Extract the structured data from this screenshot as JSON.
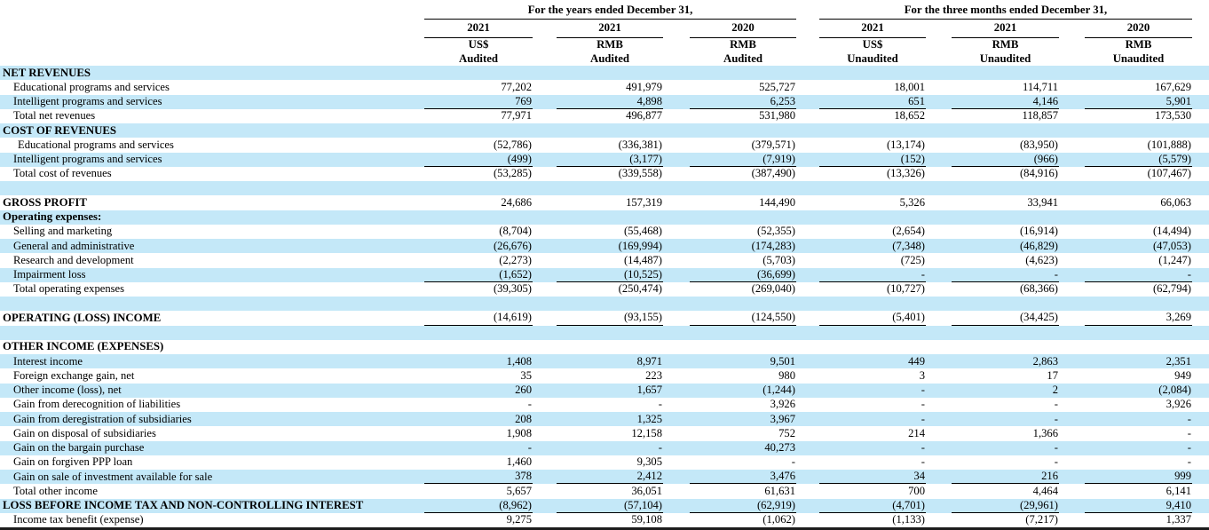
{
  "colors": {
    "row_highlight": "#c4e8f8",
    "text": "#000000",
    "rule": "#000000"
  },
  "header": {
    "groups": [
      {
        "title": "For the years ended December 31,",
        "columns": [
          {
            "year": "2021",
            "currency": "US$",
            "audit": "Audited"
          },
          {
            "year": "2021",
            "currency": "RMB",
            "audit": "Audited"
          },
          {
            "year": "2020",
            "currency": "RMB",
            "audit": "Audited"
          }
        ]
      },
      {
        "title": "For the three months ended December 31,",
        "columns": [
          {
            "year": "2021",
            "currency": "US$",
            "audit": "Unaudited"
          },
          {
            "year": "2021",
            "currency": "RMB",
            "audit": "Unaudited"
          },
          {
            "year": "2020",
            "currency": "RMB",
            "audit": "Unaudited"
          }
        ]
      }
    ]
  },
  "rows": [
    {
      "label": "NET REVENUES",
      "bold": true,
      "shade": true,
      "indent": 0,
      "underline": false,
      "spacer": false,
      "values": null
    },
    {
      "label": "Educational programs and services",
      "bold": false,
      "shade": false,
      "indent": 1,
      "underline": false,
      "spacer": false,
      "values": [
        "77,202",
        "491,979",
        "525,727",
        "18,001",
        "114,711",
        "167,629"
      ]
    },
    {
      "label": "Intelligent programs and services",
      "bold": false,
      "shade": true,
      "indent": 1,
      "underline": true,
      "spacer": false,
      "values": [
        "769",
        "4,898",
        "6,253",
        "651",
        "4,146",
        "5,901"
      ]
    },
    {
      "label": "Total net revenues",
      "bold": false,
      "shade": false,
      "indent": 1,
      "underline": false,
      "spacer": false,
      "values": [
        "77,971",
        "496,877",
        "531,980",
        "18,652",
        "118,857",
        "173,530"
      ]
    },
    {
      "label": "COST OF REVENUES",
      "bold": true,
      "shade": true,
      "indent": 0,
      "underline": false,
      "spacer": false,
      "values": null
    },
    {
      "label": "Educational programs and services",
      "bold": false,
      "shade": false,
      "indent": 2,
      "underline": false,
      "spacer": false,
      "values": [
        "(52,786)",
        "(336,381)",
        "(379,571)",
        "(13,174)",
        "(83,950)",
        "(101,888)"
      ]
    },
    {
      "label": "Intelligent programs and services",
      "bold": false,
      "shade": true,
      "indent": 1,
      "underline": true,
      "spacer": false,
      "values": [
        "(499)",
        "(3,177)",
        "(7,919)",
        "(152)",
        "(966)",
        "(5,579)"
      ]
    },
    {
      "label": "Total cost of revenues",
      "bold": false,
      "shade": false,
      "indent": 1,
      "underline": false,
      "spacer": false,
      "values": [
        "(53,285)",
        "(339,558)",
        "(387,490)",
        "(13,326)",
        "(84,916)",
        "(107,467)"
      ]
    },
    {
      "label": "",
      "bold": false,
      "shade": true,
      "indent": 0,
      "underline": false,
      "spacer": true,
      "values": null
    },
    {
      "label": "GROSS PROFIT",
      "bold": true,
      "shade": false,
      "indent": 0,
      "underline": false,
      "spacer": false,
      "values": [
        "24,686",
        "157,319",
        "144,490",
        "5,326",
        "33,941",
        "66,063"
      ]
    },
    {
      "label": "Operating expenses:",
      "bold": true,
      "shade": true,
      "indent": 0,
      "underline": false,
      "spacer": false,
      "values": null
    },
    {
      "label": "Selling and marketing",
      "bold": false,
      "shade": false,
      "indent": 1,
      "underline": false,
      "spacer": false,
      "values": [
        "(8,704)",
        "(55,468)",
        "(52,355)",
        "(2,654)",
        "(16,914)",
        "(14,494)"
      ]
    },
    {
      "label": "General and administrative",
      "bold": false,
      "shade": true,
      "indent": 1,
      "underline": false,
      "spacer": false,
      "values": [
        "(26,676)",
        "(169,994)",
        "(174,283)",
        "(7,348)",
        "(46,829)",
        "(47,053)"
      ]
    },
    {
      "label": "Research and development",
      "bold": false,
      "shade": false,
      "indent": 1,
      "underline": false,
      "spacer": false,
      "values": [
        "(2,273)",
        "(14,487)",
        "(5,703)",
        "(725)",
        "(4,623)",
        "(1,247)"
      ]
    },
    {
      "label": "Impairment loss",
      "bold": false,
      "shade": true,
      "indent": 1,
      "underline": true,
      "spacer": false,
      "values": [
        "(1,652)",
        "(10,525)",
        "(36,699)",
        "-",
        "-",
        "-"
      ]
    },
    {
      "label": "Total operating expenses",
      "bold": false,
      "shade": false,
      "indent": 1,
      "underline": false,
      "spacer": false,
      "values": [
        "(39,305)",
        "(250,474)",
        "(269,040)",
        "(10,727)",
        "(68,366)",
        "(62,794)"
      ]
    },
    {
      "label": "",
      "bold": false,
      "shade": true,
      "indent": 0,
      "underline": false,
      "spacer": true,
      "values": null
    },
    {
      "label": "OPERATING (LOSS) INCOME",
      "bold": true,
      "shade": false,
      "indent": 0,
      "underline": true,
      "spacer": false,
      "values": [
        "(14,619)",
        "(93,155)",
        "(124,550)",
        "(5,401)",
        "(34,425)",
        "3,269"
      ]
    },
    {
      "label": "",
      "bold": false,
      "shade": true,
      "indent": 0,
      "underline": false,
      "spacer": true,
      "values": null
    },
    {
      "label": "OTHER INCOME (EXPENSES)",
      "bold": true,
      "shade": false,
      "indent": 0,
      "underline": false,
      "spacer": false,
      "values": null
    },
    {
      "label": "Interest income",
      "bold": false,
      "shade": true,
      "indent": 1,
      "underline": false,
      "spacer": false,
      "values": [
        "1,408",
        "8,971",
        "9,501",
        "449",
        "2,863",
        "2,351"
      ]
    },
    {
      "label": "Foreign exchange gain, net",
      "bold": false,
      "shade": false,
      "indent": 1,
      "underline": false,
      "spacer": false,
      "values": [
        "35",
        "223",
        "980",
        "3",
        "17",
        "949"
      ]
    },
    {
      "label": "Other income (loss), net",
      "bold": false,
      "shade": true,
      "indent": 1,
      "underline": false,
      "spacer": false,
      "values": [
        "260",
        "1,657",
        "(1,244)",
        "-",
        "2",
        "(2,084)"
      ]
    },
    {
      "label": "Gain from derecognition of liabilities",
      "bold": false,
      "shade": false,
      "indent": 1,
      "underline": false,
      "spacer": false,
      "values": [
        "-",
        "-",
        "3,926",
        "-",
        "-",
        "3,926"
      ]
    },
    {
      "label": "Gain from deregistration of subsidiaries",
      "bold": false,
      "shade": true,
      "indent": 1,
      "underline": false,
      "spacer": false,
      "values": [
        "208",
        "1,325",
        "3,967",
        "-",
        "-",
        "-"
      ]
    },
    {
      "label": "Gain on disposal of subsidiaries",
      "bold": false,
      "shade": false,
      "indent": 1,
      "underline": false,
      "spacer": false,
      "values": [
        "1,908",
        "12,158",
        "752",
        "214",
        "1,366",
        "-"
      ]
    },
    {
      "label": "Gain on the bargain purchase",
      "bold": false,
      "shade": true,
      "indent": 1,
      "underline": false,
      "spacer": false,
      "values": [
        "-",
        "-",
        "40,273",
        "-",
        "-",
        "-"
      ]
    },
    {
      "label": "Gain on forgiven PPP loan",
      "bold": false,
      "shade": false,
      "indent": 1,
      "underline": false,
      "spacer": false,
      "values": [
        "1,460",
        "9,305",
        "-",
        "-",
        "-",
        "-"
      ]
    },
    {
      "label": "Gain on sale of investment available for sale",
      "bold": false,
      "shade": true,
      "indent": 1,
      "underline": true,
      "spacer": false,
      "values": [
        "378",
        "2,412",
        "3,476",
        "34",
        "216",
        "999"
      ]
    },
    {
      "label": "Total other income",
      "bold": false,
      "shade": false,
      "indent": 1,
      "underline": false,
      "spacer": false,
      "values": [
        "5,657",
        "36,051",
        "61,631",
        "700",
        "4,464",
        "6,141"
      ]
    },
    {
      "label": "LOSS BEFORE INCOME TAX AND NON-CONTROLLING INTEREST",
      "bold": true,
      "shade": true,
      "indent": 0,
      "underline": true,
      "spacer": false,
      "values": [
        "(8,962)",
        "(57,104)",
        "(62,919)",
        "(4,701)",
        "(29,961)",
        "9,410"
      ]
    },
    {
      "label": "Income tax benefit (expense)",
      "bold": false,
      "shade": false,
      "indent": 1,
      "underline": false,
      "spacer": false,
      "values": [
        "9,275",
        "59,108",
        "(1,062)",
        "(1,133)",
        "(7,217)",
        "1,337"
      ]
    }
  ]
}
